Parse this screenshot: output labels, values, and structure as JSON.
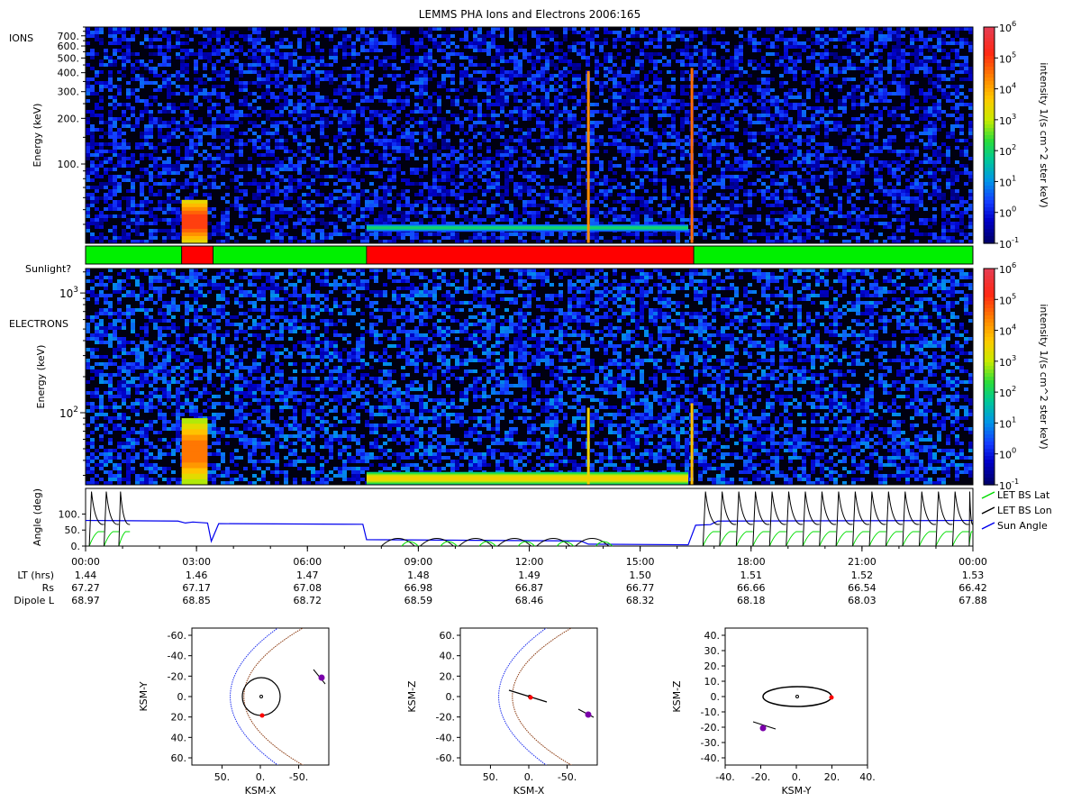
{
  "title": "LEMMS PHA Ions and Electrons  2006:165",
  "colors": {
    "sun_yes": "#00f000",
    "sun_no": "#ff0000",
    "bs_lat": "#00dd00",
    "bs_lon": "#000000",
    "sun_angle": "#0000ee",
    "magnetopause": "#8b3a10",
    "bow_shock": "#2233ee",
    "spacecraft": "#ff0000",
    "cassini_marker": "#7a00aa"
  },
  "panels": {
    "ions": {
      "label": "IONS",
      "ylabel": "Energy (keV)",
      "yticks": [
        "700.",
        "600.",
        "500.",
        "400.",
        "300.",
        "200.",
        "100."
      ],
      "colorbar_label": "intensity 1/(s cm^2 ster keV)",
      "colorbar_ticks": [
        "10^6",
        "10^5",
        "10^4",
        "10^3",
        "10^2",
        "10^1",
        "10^0",
        "10^-1"
      ]
    },
    "sunlight": {
      "label": "Sunlight?",
      "segments": [
        {
          "start": 0.0,
          "end": 2.6,
          "sun": true
        },
        {
          "start": 2.6,
          "end": 3.45,
          "sun": false
        },
        {
          "start": 3.45,
          "end": 7.6,
          "sun": true
        },
        {
          "start": 7.6,
          "end": 16.45,
          "sun": false
        },
        {
          "start": 16.45,
          "end": 24.0,
          "sun": true
        }
      ]
    },
    "electrons": {
      "label": "ELECTRONS",
      "ylabel": "Energy (keV)",
      "yticks": [
        "10^3",
        "10^2"
      ],
      "colorbar_label": "intensity 1/(s cm^2 ster keV)",
      "colorbar_ticks": [
        "10^6",
        "10^5",
        "10^4",
        "10^3",
        "10^2",
        "10^1",
        "10^0",
        "10^-1"
      ]
    }
  },
  "chart_data": [
    {
      "type": "heatmap",
      "title": "IONS",
      "ylabel": "Energy (keV)",
      "ylim_kev": [
        30,
        800
      ],
      "xlim_hours": [
        0,
        24
      ],
      "background_log_intensity": 0.0,
      "features": [
        {
          "kind": "block",
          "start": 2.6,
          "end": 3.3,
          "e_low": 30,
          "e_high": 58,
          "log_intensity": 5.0
        },
        {
          "kind": "band",
          "start": 7.6,
          "end": 16.3,
          "e_low": 36,
          "e_high": 40,
          "log_intensity": 2.0
        },
        {
          "kind": "spike",
          "time": 13.6,
          "e_top": 410,
          "log_intensity": 4.3
        },
        {
          "kind": "spike",
          "time": 16.4,
          "e_top": 430,
          "log_intensity": 4.6
        }
      ]
    },
    {
      "type": "heatmap",
      "title": "ELECTRONS",
      "ylabel": "Energy (keV)",
      "ylim_kev": [
        25,
        1600
      ],
      "xlim_hours": [
        0,
        24
      ],
      "background_log_intensity": 0.3,
      "features": [
        {
          "kind": "block",
          "start": 2.6,
          "end": 3.3,
          "e_low": 25,
          "e_high": 90,
          "log_intensity": 4.5
        },
        {
          "kind": "band",
          "start": 7.6,
          "end": 16.3,
          "e_low": 25,
          "e_high": 32,
          "log_intensity": 3.5
        },
        {
          "kind": "spike",
          "time": 13.6,
          "e_top": 110,
          "log_intensity": 3.5
        },
        {
          "kind": "spike",
          "time": 16.4,
          "e_top": 120,
          "log_intensity": 3.8
        }
      ]
    },
    {
      "type": "line",
      "title": "Angles",
      "ylabel": "Angle (deg)",
      "ylim": [
        0,
        180
      ],
      "yticks": [
        "100.",
        "50.",
        "0."
      ],
      "xlim_hours": [
        0,
        24
      ],
      "series": [
        {
          "name": "Sun Angle",
          "x": [
            0,
            2.5,
            2.7,
            2.9,
            3.3,
            3.4,
            3.6,
            7.5,
            7.6,
            13.4,
            13.6,
            16.3,
            16.5,
            16.9,
            17.1,
            24
          ],
          "y": [
            80,
            78,
            72,
            75,
            72,
            15,
            70,
            68,
            20,
            16,
            6,
            4,
            65,
            67,
            78,
            80
          ]
        },
        {
          "name": "LET BS Lat",
          "pattern": "sawtooth",
          "peak": 45,
          "phases": [
            [
              0.1,
              1.2
            ],
            [
              8.0,
              13.5
            ],
            [
              16.7,
              24
            ]
          ]
        },
        {
          "name": "LET BS Lon",
          "pattern": "sharp-spikes",
          "peak": 170,
          "phases": [
            [
              0.1,
              1.2
            ],
            [
              16.7,
              24
            ]
          ],
          "low_arcs": [
            8.0,
            13.5
          ]
        }
      ]
    }
  ],
  "angle_panel": {
    "ylabel": "Angle (deg)",
    "yticks": [
      "100.",
      "50.",
      "0."
    ],
    "legend": [
      "LET BS Lat",
      "LET BS Lon",
      "Sun Angle"
    ]
  },
  "time_axis": {
    "ticks": [
      "00:00",
      "03:00",
      "06:00",
      "09:00",
      "12:00",
      "15:00",
      "18:00",
      "21:00",
      "00:00"
    ],
    "rows": [
      {
        "label": "LT (hrs)",
        "values": [
          "1.44",
          "1.46",
          "1.47",
          "1.48",
          "1.49",
          "1.50",
          "1.51",
          "1.52",
          "1.53"
        ]
      },
      {
        "label": "Rs",
        "values": [
          "67.27",
          "67.17",
          "67.08",
          "66.98",
          "66.87",
          "66.77",
          "66.66",
          "66.54",
          "66.42"
        ]
      },
      {
        "label": "Dipole L",
        "values": [
          "68.97",
          "68.85",
          "68.72",
          "68.59",
          "68.46",
          "68.32",
          "68.18",
          "68.03",
          "67.88"
        ]
      }
    ]
  },
  "orbit_plots": [
    {
      "name": "xy",
      "xlabel": "KSM-X",
      "ylabel": "KSM-Y",
      "xticks": [
        "50.",
        "0.",
        "-50."
      ],
      "yticks": [
        "-60.",
        "-40.",
        "-20.",
        "0.",
        "20.",
        "40.",
        "60."
      ]
    },
    {
      "name": "xz",
      "xlabel": "KSM-X",
      "ylabel": "KSM-Z",
      "xticks": [
        "50.",
        "0.",
        "-50."
      ],
      "yticks": [
        "60.",
        "40.",
        "20.",
        "0.",
        "-20.",
        "-40.",
        "-60."
      ]
    },
    {
      "name": "yz",
      "xlabel": "KSM-Y",
      "ylabel": "KSM-Z",
      "xticks": [
        "-40.",
        "-20.",
        "0.",
        "20.",
        "40."
      ],
      "yticks": [
        "40.",
        "30.",
        "20.",
        "10.",
        "0.",
        "-10.",
        "-20.",
        "-30.",
        "-40."
      ]
    }
  ]
}
